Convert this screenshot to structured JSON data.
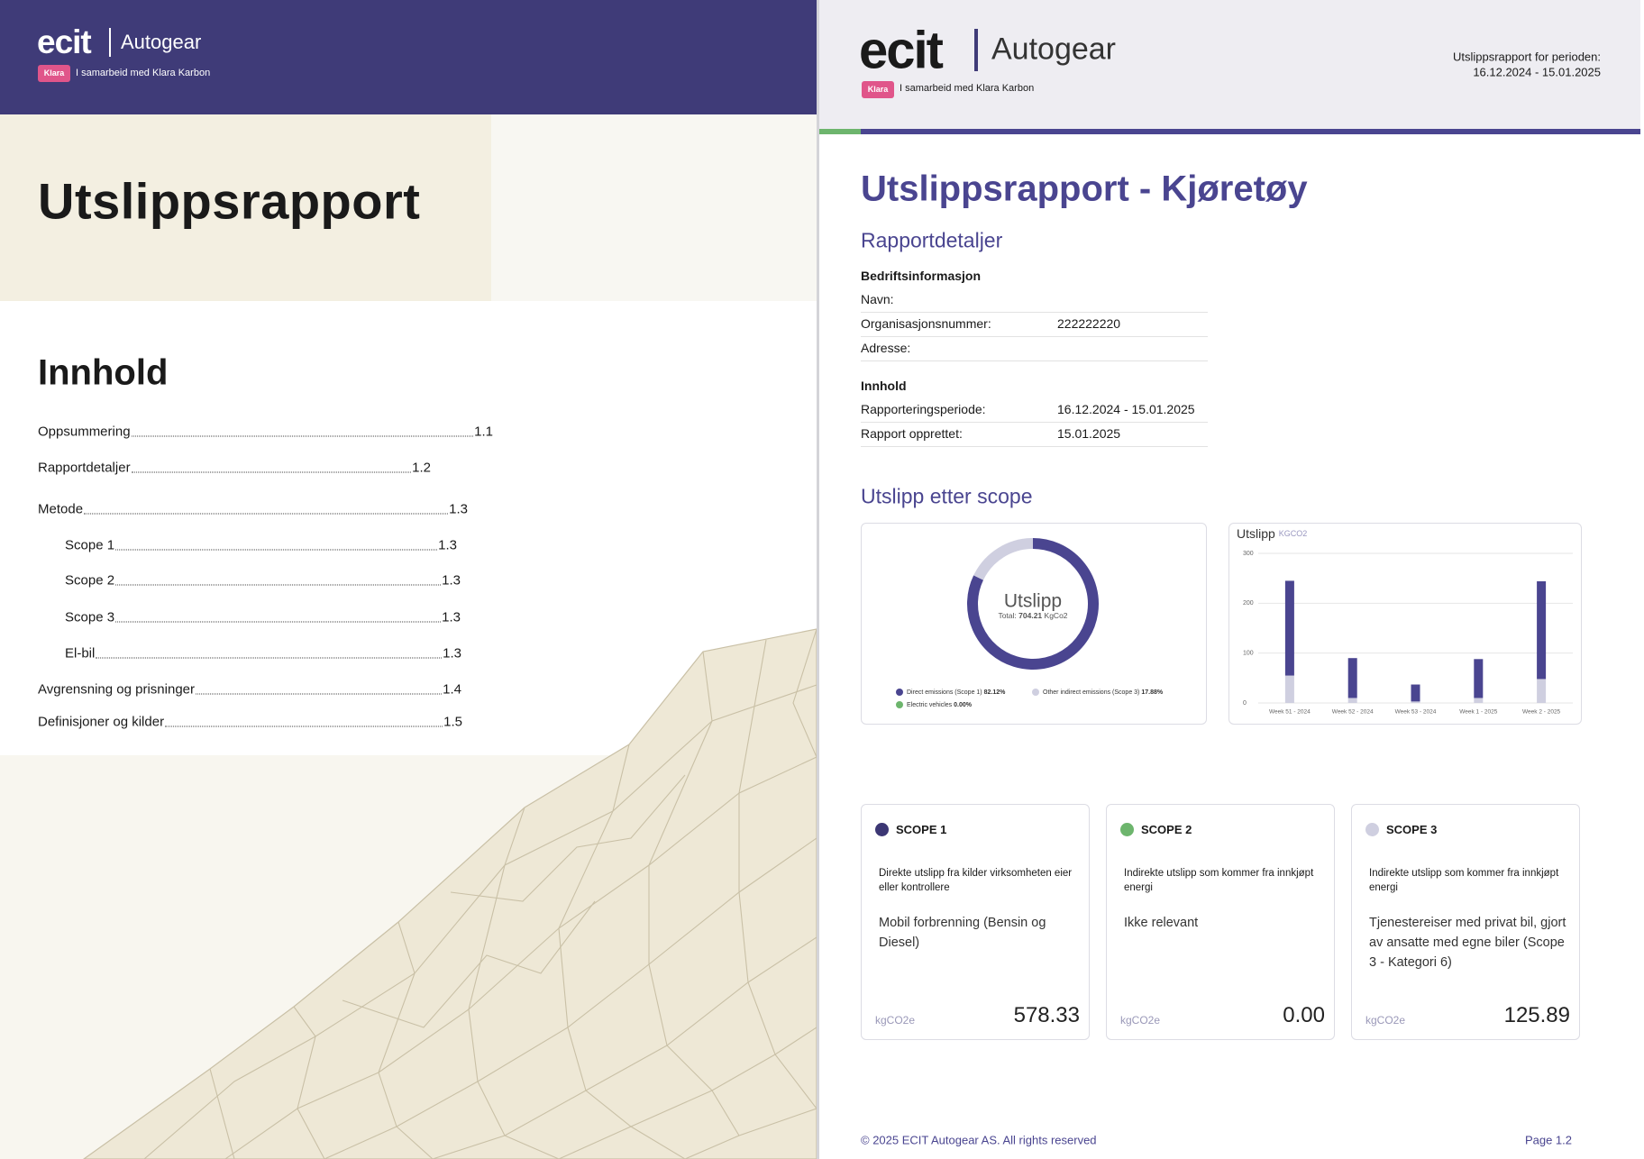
{
  "left_page": {
    "header": {
      "logo": "ecit",
      "brand": "Autogear",
      "badge": "Klara",
      "partner": "I samarbeid med Klara Karbon"
    },
    "title": "Utslippsrapport",
    "toc": {
      "title": "Innhold",
      "entries": [
        {
          "text": "Oppsummering",
          "page": "1.1"
        },
        {
          "text": "Rapportdetaljer",
          "page": "1.2"
        },
        {
          "text": "Metode",
          "page": "1.3"
        },
        {
          "text": "Scope 1",
          "page": "1.3"
        },
        {
          "text": "Scope 2",
          "page": "1.3"
        },
        {
          "text": "Scope 3",
          "page": "1.3"
        },
        {
          "text": "El-bil",
          "page": "1.3"
        },
        {
          "text": "Avgrensning og prisninger",
          "page": "1.4"
        },
        {
          "text": "Definisjoner og kilder",
          "page": "1.5"
        }
      ]
    }
  },
  "right_page": {
    "header": {
      "logo": "ecit",
      "brand": "Autogear",
      "badge": "Klara",
      "partner": "I samarbeid med Klara Karbon",
      "period_label": "Utslippsrapport for perioden:",
      "period": "16.12.2024 - 15.01.2025"
    },
    "title": "Utslippsrapport - Kjøretøy",
    "details_heading": "Rapportdetaljer",
    "details": [
      {
        "title": "Bedriftsinformasjon",
        "rows": [
          {
            "label": "Navn:"
          },
          {
            "label": "Organisasjonsnummer:",
            "value": "222222220"
          },
          {
            "label": "Adresse:"
          }
        ]
      },
      {
        "title": "Innhold",
        "rows": [
          {
            "label": "Rapporteringsperiode:",
            "value": "16.12.2024 - 15.01.2025"
          },
          {
            "label": "Rapport opprettet:",
            "value": "15.01.2025"
          }
        ]
      }
    ],
    "emissions_heading": "Utslipp etter scope",
    "scopes": [
      {
        "title": "SCOPE 1",
        "color": "#3c3774",
        "description": "Direkte utslipp fra kilder virksomheten eier eller kontrollere",
        "detail": "Mobil forbrenning (Bensin og Diesel)",
        "unit": "kgCO2e",
        "value": "578.33"
      },
      {
        "title": "SCOPE 2",
        "color": "#6db56d",
        "description": "Indirekte utslipp som kommer fra innkjøpt energi",
        "detail": "Ikke relevant",
        "unit": "kgCO2e",
        "value": "0.00"
      },
      {
        "title": "SCOPE 3",
        "color": "#cfcfe0",
        "description": "Indirekte utslipp som kommer fra innkjøpt energi",
        "detail": "Tjenestereiser med privat bil, gjort av ansatte med egne biler (Scope 3 - Kategori 6)",
        "unit": "kgCO2e",
        "value": "125.89"
      }
    ],
    "footer": {
      "copyright": "© 2025 ECIT Autogear AS. All rights reserved",
      "page": "Page 1.2"
    }
  },
  "chart_data": [
    {
      "type": "pie",
      "donut": true,
      "center_label": "Utslipp",
      "total_label": "Total:",
      "total": 704.21,
      "total_unit": "KgCo2",
      "categories": [
        "Direct emissions (Scope 1)",
        "Other indirect emissions (Scope 3)",
        "Electric vehicles"
      ],
      "values": [
        82.12,
        17.88,
        0
      ],
      "value_labels": [
        "82.12%",
        "17.88%",
        "0.00%"
      ],
      "colors": [
        "#4a4590",
        "#cfcfe0",
        "#6db56d"
      ]
    },
    {
      "type": "bar",
      "stacked": true,
      "title": "Utslipp",
      "unit": "KGCO2",
      "categories": [
        "Week 51 - 2024",
        "Week 52 - 2024",
        "Week 53 - 2024",
        "Week 1 - 2025",
        "Week 2 - 2025"
      ],
      "series": [
        {
          "color": "#cfcfe0",
          "values": [
            55,
            10,
            3,
            10,
            48
          ]
        },
        {
          "color": "#4a4590",
          "values": [
            190,
            80,
            34,
            78,
            196
          ]
        }
      ],
      "ylim": [
        0,
        300
      ],
      "yticks": [
        0,
        100,
        200,
        300
      ],
      "grid": true
    }
  ]
}
